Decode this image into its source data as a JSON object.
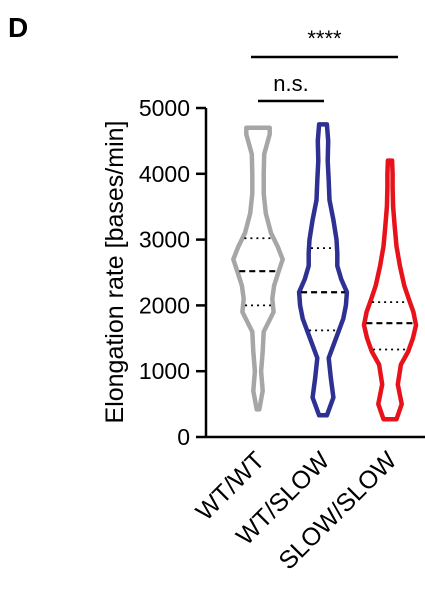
{
  "panel_label": "D",
  "chart_data": {
    "type": "violin",
    "ylabel": "Elongation rate [bases/min]",
    "ylim": [
      0,
      5000
    ],
    "yticks": [
      "0",
      "1000",
      "2000",
      "3000",
      "4000",
      "5000"
    ],
    "categories": [
      "WT/WT",
      "WT/SLOW",
      "SLOW/SLOW"
    ],
    "colors": [
      "#a6a6a6",
      "#2e3192",
      "#e8121b"
    ],
    "series": [
      {
        "category": "WT/WT",
        "median": 2520,
        "q1": 2000,
        "q3": 3020,
        "min": 420,
        "max": 4700,
        "density": [
          [
            420,
            0.05
          ],
          [
            700,
            0.18
          ],
          [
            1000,
            0.12
          ],
          [
            1300,
            0.18
          ],
          [
            1600,
            0.22
          ],
          [
            1900,
            0.6
          ],
          [
            2100,
            0.55
          ],
          [
            2300,
            0.62
          ],
          [
            2500,
            0.78
          ],
          [
            2700,
            0.95
          ],
          [
            2900,
            0.75
          ],
          [
            3100,
            0.5
          ],
          [
            3400,
            0.3
          ],
          [
            3700,
            0.22
          ],
          [
            4000,
            0.22
          ],
          [
            4300,
            0.24
          ],
          [
            4600,
            0.45
          ],
          [
            4700,
            0.45
          ]
        ]
      },
      {
        "category": "WT/SLOW",
        "median": 2200,
        "q1": 1620,
        "q3": 2870,
        "min": 330,
        "max": 4750,
        "density": [
          [
            330,
            0.15
          ],
          [
            600,
            0.4
          ],
          [
            900,
            0.3
          ],
          [
            1200,
            0.22
          ],
          [
            1500,
            0.5
          ],
          [
            1800,
            0.78
          ],
          [
            2000,
            0.88
          ],
          [
            2200,
            0.92
          ],
          [
            2400,
            0.7
          ],
          [
            2600,
            0.55
          ],
          [
            2800,
            0.55
          ],
          [
            3000,
            0.52
          ],
          [
            3300,
            0.4
          ],
          [
            3600,
            0.25
          ],
          [
            3900,
            0.22
          ],
          [
            4200,
            0.18
          ],
          [
            4500,
            0.2
          ],
          [
            4750,
            0.15
          ]
        ]
      },
      {
        "category": "SLOW/SLOW",
        "median": 1730,
        "q1": 1330,
        "q3": 2050,
        "min": 270,
        "max": 4200,
        "density": [
          [
            270,
            0.25
          ],
          [
            500,
            0.45
          ],
          [
            800,
            0.3
          ],
          [
            1100,
            0.42
          ],
          [
            1300,
            0.7
          ],
          [
            1500,
            0.88
          ],
          [
            1700,
            1.0
          ],
          [
            1900,
            0.9
          ],
          [
            2100,
            0.72
          ],
          [
            2300,
            0.55
          ],
          [
            2600,
            0.38
          ],
          [
            2900,
            0.25
          ],
          [
            3200,
            0.18
          ],
          [
            3500,
            0.12
          ],
          [
            3800,
            0.1
          ],
          [
            4000,
            0.1
          ],
          [
            4200,
            0.08
          ]
        ]
      }
    ],
    "annotations": [
      {
        "text": "n.s.",
        "from": "WT/WT",
        "to": "WT/SLOW"
      },
      {
        "text": "****",
        "from": "WT/WT",
        "to": "SLOW/SLOW"
      }
    ]
  }
}
